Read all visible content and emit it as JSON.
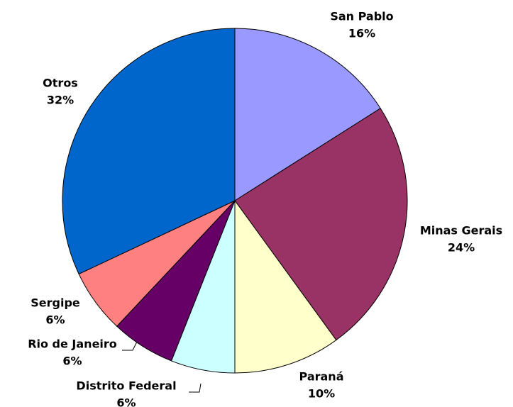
{
  "chart_data": {
    "type": "pie",
    "categories": [
      "San Pablo",
      "Minas Gerais",
      "Paraná",
      "Distrito Federal",
      "Rio de Janeiro",
      "Sergipe",
      "Otros"
    ],
    "values": [
      16,
      24,
      10,
      6,
      6,
      6,
      32
    ],
    "value_labels": [
      "16%",
      "24%",
      "10%",
      "6%",
      "6%",
      "6%",
      "32%"
    ],
    "colors": [
      "#9999ff",
      "#993366",
      "#ffffcc",
      "#ccffff",
      "#660066",
      "#ff8080",
      "#0066cc"
    ]
  }
}
